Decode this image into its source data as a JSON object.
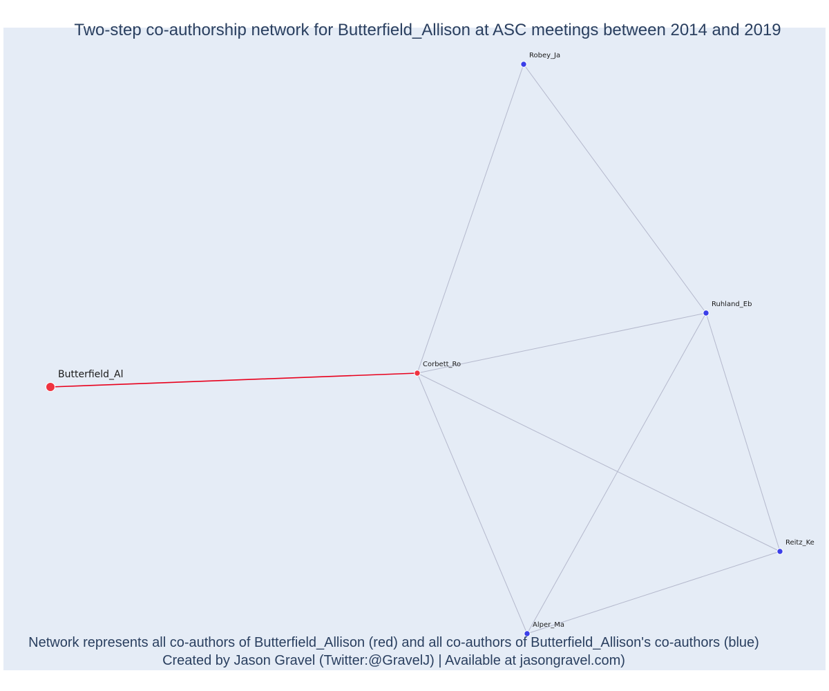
{
  "title": "Two-step co-authorship network for Butterfield_Allison at ASC meetings between 2014 and 2019",
  "footer": {
    "line1": "Network represents all co-authors of Butterfield_Allison (red) and all co-authors of Butterfield_Allison's co-authors (blue)",
    "line2": "Created by Jason Gravel (Twitter:@GravelJ) | Available at jasongravel.com)"
  },
  "colors": {
    "background": "#e5ecf6",
    "ego": "#ef3340",
    "coauthor": "#ef3340",
    "second_step": "#3b3fe8",
    "ego_edge": "#e8001c",
    "edge": "#b4b8cc"
  },
  "nodes": [
    {
      "id": "Butterfield_Al",
      "label": "Butterfield_Al",
      "group": "ego"
    },
    {
      "id": "Corbett_Ro",
      "label": "Corbett_Ro",
      "group": "coauthor"
    },
    {
      "id": "Robey_Ja",
      "label": "Robey_Ja",
      "group": "second_step"
    },
    {
      "id": "Ruhland_Eb",
      "label": "Ruhland_Eb",
      "group": "second_step"
    },
    {
      "id": "Reitz_Ke",
      "label": "Reitz_Ke",
      "group": "second_step"
    },
    {
      "id": "Alper_Ma",
      "label": "Alper_Ma",
      "group": "second_step"
    }
  ],
  "edges": [
    {
      "source": "Butterfield_Al",
      "target": "Corbett_Ro",
      "type": "ego"
    },
    {
      "source": "Corbett_Ro",
      "target": "Robey_Ja",
      "type": "other"
    },
    {
      "source": "Corbett_Ro",
      "target": "Ruhland_Eb",
      "type": "other"
    },
    {
      "source": "Corbett_Ro",
      "target": "Reitz_Ke",
      "type": "other"
    },
    {
      "source": "Corbett_Ro",
      "target": "Alper_Ma",
      "type": "other"
    },
    {
      "source": "Robey_Ja",
      "target": "Ruhland_Eb",
      "type": "other"
    },
    {
      "source": "Ruhland_Eb",
      "target": "Reitz_Ke",
      "type": "other"
    },
    {
      "source": "Ruhland_Eb",
      "target": "Alper_Ma",
      "type": "other"
    },
    {
      "source": "Reitz_Ke",
      "target": "Alper_Ma",
      "type": "other"
    }
  ]
}
